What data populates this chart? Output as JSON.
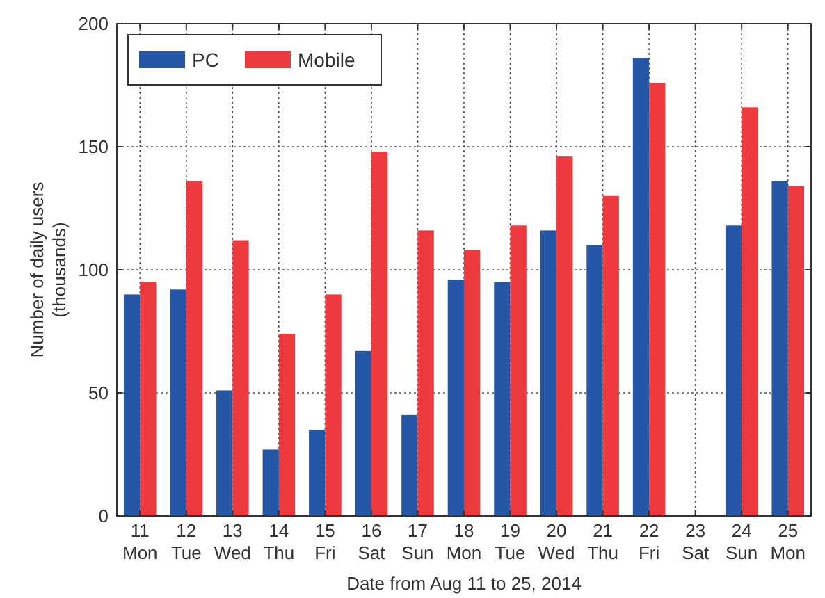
{
  "chart_data": {
    "type": "bar",
    "xlabel": "Date from Aug 11 to 25, 2014",
    "ylabel": "Number of daily users\n(thousands)",
    "categories": [
      "11\nMon",
      "12\nTue",
      "13\nWed",
      "14\nThu",
      "15\nFri",
      "16\nSat",
      "17\nSun",
      "18\nMon",
      "19\nTue",
      "20\nWed",
      "21\nThu",
      "22\nFri",
      "23\nSat",
      "24\nSun",
      "25\nMon"
    ],
    "series": [
      {
        "name": "PC",
        "color": "#2657a6",
        "values": [
          90,
          92,
          51,
          27,
          35,
          67,
          41,
          96,
          95,
          116,
          110,
          186,
          null,
          118,
          136
        ]
      },
      {
        "name": "Mobile",
        "color": "#ee3a3e",
        "values": [
          95,
          136,
          112,
          74,
          90,
          148,
          116,
          108,
          118,
          146,
          130,
          176,
          null,
          166,
          134
        ]
      }
    ],
    "ylim": [
      0,
      200
    ],
    "yticks": [
      0,
      50,
      100,
      150,
      200
    ],
    "grid": true,
    "legend": "top left"
  }
}
